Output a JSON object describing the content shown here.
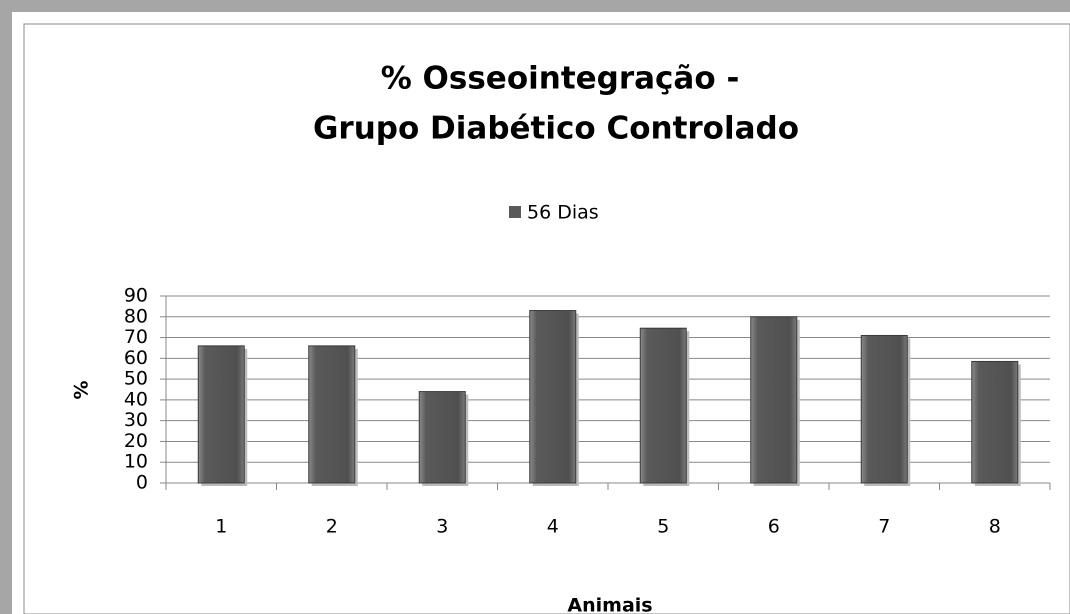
{
  "chart_data": {
    "type": "bar",
    "title": [
      "% Osseointegração -",
      "Grupo Diabético Controlado"
    ],
    "x_label": "Animais",
    "y_label": "%",
    "categories": [
      "1",
      "2",
      "3",
      "4",
      "5",
      "6",
      "7",
      "8"
    ],
    "series": [
      {
        "name": "56 Dias",
        "color": "#595959",
        "values": [
          66,
          66,
          44,
          83,
          74.5,
          80,
          71,
          58.5
        ]
      }
    ],
    "ylim": [
      0,
      90
    ],
    "yticks": [
      0,
      10,
      20,
      30,
      40,
      50,
      60,
      70,
      80,
      90
    ],
    "grid": true,
    "legend": "top"
  }
}
